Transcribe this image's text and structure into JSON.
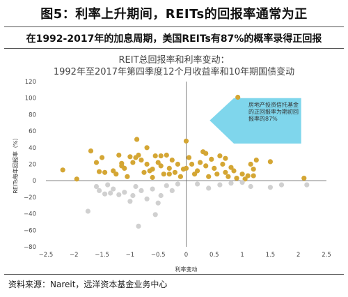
{
  "header": {
    "title": "图5：利率上升期间，REITs的回报率通常为正",
    "subtitle": "在1992-2017年的加息周期，美国REITs有87%的概率录得正回报"
  },
  "footer": {
    "source": "资料来源：Nareit，远洋资本基金业务中心"
  },
  "chart_data": {
    "type": "scatter",
    "title": "REIT总回报率和利率变动：",
    "subtitle": "1992年至2017年第四季度12个月收益率和10年期国债变动",
    "xlabel": "利率变动",
    "ylabel": "REITs每年回报率（%）",
    "xlim": [
      -2.5,
      2.5
    ],
    "ylim": [
      -80,
      120
    ],
    "xticks": [
      "−2.5",
      "−2",
      "−1.5",
      "−1",
      "−0.5",
      "0",
      "0.5",
      "1",
      "1.5",
      "2",
      "2.5"
    ],
    "yticks": [
      "120",
      "100",
      "80",
      "60",
      "40",
      "20",
      "0",
      "−20",
      "−40",
      "−60",
      "−80"
    ],
    "grid": false,
    "annotation": "房地产投资信托基金的正回报率为期初回报率的87%",
    "colors": {
      "positive": "#D4A634",
      "negative": "#D0D0D0",
      "callout": "#7FD6EC"
    },
    "series": [
      {
        "values": [
          [
            -2.2,
            13
          ],
          [
            -1.95,
            2
          ],
          [
            -1.6,
            22
          ],
          [
            -1.55,
            11
          ],
          [
            -1.45,
            10
          ],
          [
            -1.7,
            36
          ],
          [
            -1.5,
            28
          ],
          [
            -1.3,
            12
          ],
          [
            -1.25,
            8
          ],
          [
            -1.15,
            21
          ],
          [
            -1.1,
            15
          ],
          [
            -1.05,
            5
          ],
          [
            -1.2,
            31
          ],
          [
            -1.15,
            18
          ],
          [
            -0.95,
            22
          ],
          [
            -0.9,
            28
          ],
          [
            -0.85,
            31
          ],
          [
            -0.8,
            25
          ],
          [
            -0.75,
            10
          ],
          [
            -0.7,
            20
          ],
          [
            -0.65,
            12
          ],
          [
            -0.6,
            14
          ],
          [
            -0.55,
            30
          ],
          [
            -0.5,
            22
          ],
          [
            -0.45,
            18
          ],
          [
            -0.4,
            8
          ],
          [
            -0.35,
            31
          ],
          [
            -0.3,
            15
          ],
          [
            -0.25,
            25
          ],
          [
            -0.2,
            10
          ],
          [
            -0.15,
            20
          ],
          [
            -0.1,
            5
          ],
          [
            -0.05,
            14
          ],
          [
            0.0,
            15
          ],
          [
            0.05,
            28
          ],
          [
            0.1,
            20
          ],
          [
            0.15,
            8
          ],
          [
            0.2,
            12
          ],
          [
            0.25,
            22
          ],
          [
            0.3,
            35
          ],
          [
            0.35,
            18
          ],
          [
            0.4,
            5
          ],
          [
            0.45,
            26
          ],
          [
            0.5,
            15
          ],
          [
            0.55,
            8
          ],
          [
            0.6,
            30
          ],
          [
            0.65,
            20
          ],
          [
            0.7,
            10
          ],
          [
            0.75,
            5
          ],
          [
            0.8,
            16
          ],
          [
            0.85,
            12
          ],
          [
            0.9,
            3
          ],
          [
            1.0,
            8
          ],
          [
            1.05,
            2
          ],
          [
            1.1,
            6
          ],
          [
            1.15,
            20
          ],
          [
            1.2,
            6
          ],
          [
            1.25,
            25
          ],
          [
            1.5,
            23
          ],
          [
            2.1,
            3
          ],
          [
            -0.88,
            50
          ],
          [
            0.0,
            48
          ],
          [
            0.92,
            101
          ],
          [
            -0.6,
            4
          ],
          [
            -0.45,
            30
          ],
          [
            0.35,
            33
          ],
          [
            -1.0,
            29
          ],
          [
            -0.3,
            8
          ],
          [
            0.7,
            27
          ],
          [
            1.2,
            14
          ],
          [
            -0.7,
            40
          ]
        ]
      },
      {
        "values": [
          [
            -1.75,
            -37
          ],
          [
            -1.55,
            -12
          ],
          [
            -1.6,
            -7
          ],
          [
            -1.4,
            -5
          ],
          [
            -1.3,
            -10
          ],
          [
            -1.2,
            -17
          ],
          [
            -1.1,
            -14
          ],
          [
            -1.0,
            -25
          ],
          [
            -0.9,
            -7
          ],
          [
            -0.8,
            -12
          ],
          [
            -0.7,
            -22
          ],
          [
            -0.6,
            -10
          ],
          [
            -0.5,
            -27
          ],
          [
            -0.45,
            -18
          ],
          [
            -0.55,
            -41
          ],
          [
            -0.35,
            -6
          ],
          [
            -0.25,
            -12
          ],
          [
            -0.15,
            -4
          ],
          [
            -0.85,
            -55
          ],
          [
            0.4,
            -9
          ],
          [
            0.6,
            -5
          ],
          [
            0.8,
            -3
          ],
          [
            1.0,
            -2
          ],
          [
            1.15,
            -7
          ],
          [
            1.5,
            -8
          ],
          [
            1.7,
            -5
          ],
          [
            2.15,
            -5
          ],
          [
            -1.35,
            -15
          ],
          [
            -0.95,
            -18
          ],
          [
            -1.45,
            -16
          ],
          [
            0.2,
            -4
          ]
        ]
      }
    ]
  }
}
